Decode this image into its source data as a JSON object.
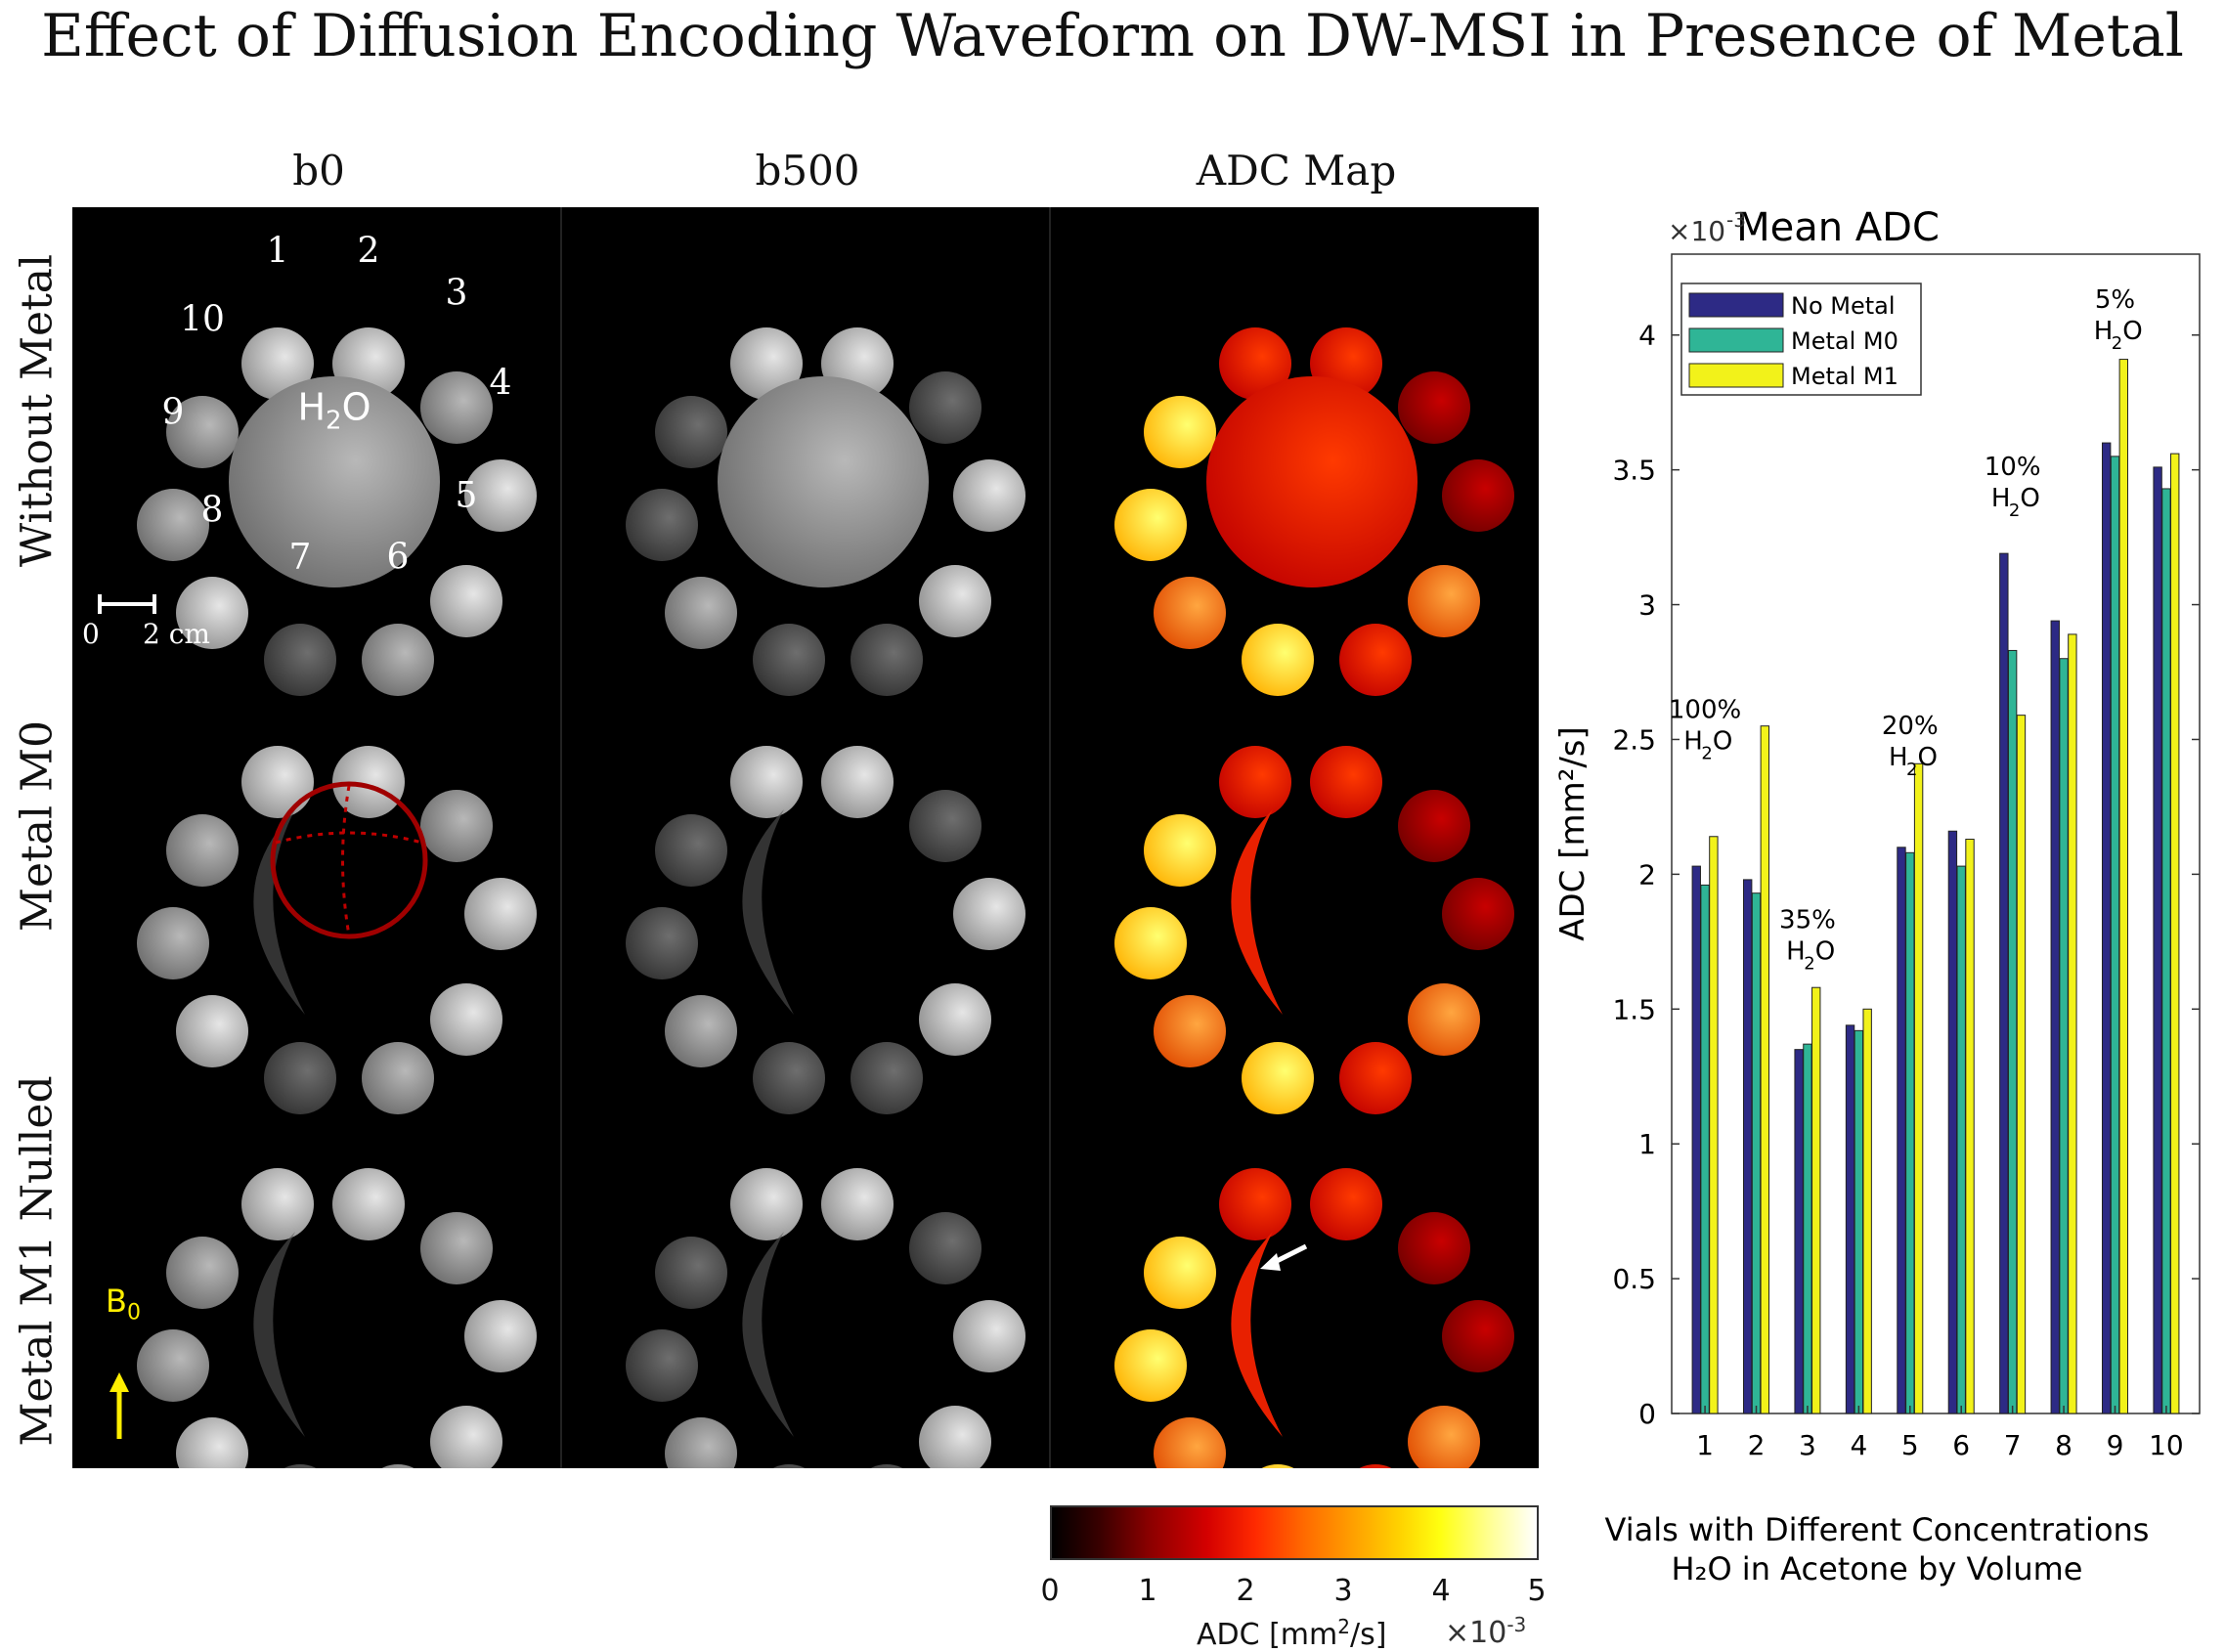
{
  "title": "Effect of Diffusion Encoding Waveform on DW-MSI in Presence of Metal",
  "columns": [
    "b0",
    "b500",
    "ADC Map"
  ],
  "rows": [
    "Without Metal",
    "Metal M0",
    "Metal M1 Nulled"
  ],
  "image_panel": {
    "vial_labels": [
      "1",
      "2",
      "3",
      "4",
      "5",
      "6",
      "7",
      "8",
      "9",
      "10"
    ],
    "center_label": "H",
    "center_sub": "2",
    "center_tail": "O",
    "scale_bar": {
      "start": "0",
      "end": "2 cm"
    },
    "b0_label": "B",
    "b0_sub": "0"
  },
  "colorbar": {
    "ticks": [
      "0",
      "1",
      "2",
      "3",
      "4",
      "5"
    ],
    "label": "ADC [mm",
    "label_sup": "2",
    "label_tail": "/s]",
    "exponent": "×10",
    "exponent_sup": "-3"
  },
  "colors": {
    "no_metal": "#2d2a85",
    "metal_m0": "#2fb596",
    "metal_m1": "#f2f21a"
  },
  "chart_data": {
    "type": "bar",
    "title": "Mean ADC",
    "exponent": "×10",
    "exponent_sup": "-3",
    "ylabel": "ADC [mm²/s]",
    "xlabel_line1": "Vials with Different Concentrations",
    "xlabel_line2": "H₂O in Acetone by Volume",
    "ylim": [
      0,
      4.3
    ],
    "yticks": [
      0,
      0.5,
      1,
      1.5,
      2,
      2.5,
      3,
      3.5,
      4
    ],
    "ytick_labels": [
      "0",
      "0.5",
      "1",
      "1.5",
      "2",
      "2.5",
      "3",
      "3.5",
      "4"
    ],
    "categories": [
      "1",
      "2",
      "3",
      "4",
      "5",
      "6",
      "7",
      "8",
      "9",
      "10"
    ],
    "series": [
      {
        "name": "No Metal",
        "values": [
          2.03,
          1.98,
          1.35,
          1.44,
          2.1,
          2.16,
          3.19,
          2.94,
          3.6,
          3.51
        ]
      },
      {
        "name": "Metal M0",
        "values": [
          1.96,
          1.93,
          1.37,
          1.42,
          2.08,
          2.03,
          2.83,
          2.8,
          3.55,
          3.43
        ]
      },
      {
        "name": "Metal M1",
        "values": [
          2.14,
          2.55,
          1.58,
          1.5,
          2.41,
          2.13,
          2.59,
          2.89,
          3.91,
          3.56
        ]
      }
    ],
    "annotations": [
      {
        "group": 1,
        "line1": "100%",
        "line2": "H",
        "sub": "2",
        "tail": "O",
        "y": 2.58
      },
      {
        "group": 3,
        "line1": "35%",
        "line2": "H",
        "sub": "2",
        "tail": "O",
        "y": 1.8
      },
      {
        "group": 5,
        "line1": "20%",
        "line2": "H",
        "sub": "2",
        "tail": "O",
        "y": 2.52
      },
      {
        "group": 7,
        "line1": "10%",
        "line2": "H",
        "sub": "2",
        "tail": "O",
        "y": 3.48
      },
      {
        "group": 9,
        "line1": "5%",
        "line2": "H",
        "sub": "2",
        "tail": "O",
        "y": 4.1
      }
    ],
    "legend": "top-left"
  }
}
